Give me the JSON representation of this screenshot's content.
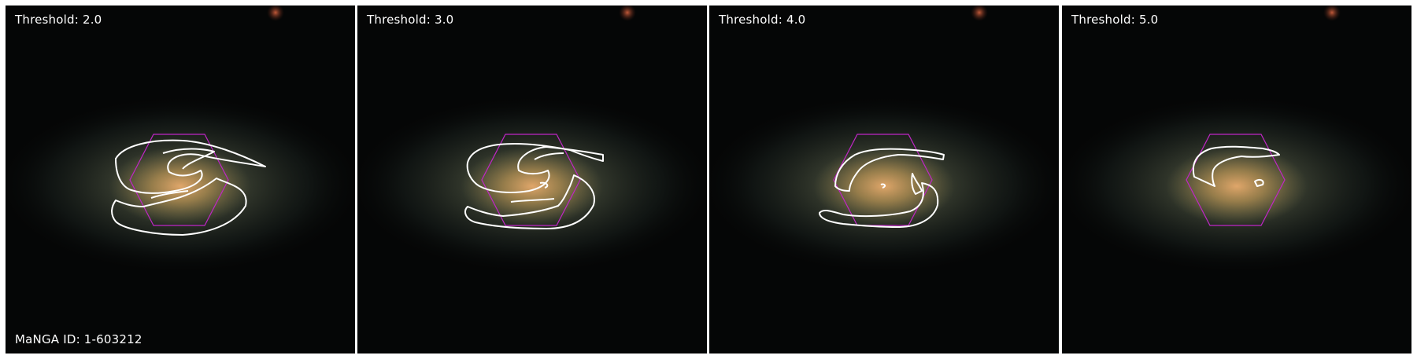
{
  "panels": [
    {
      "threshold_label": "Threshold: 2.0"
    },
    {
      "threshold_label": "Threshold: 3.0"
    },
    {
      "threshold_label": "Threshold: 4.0"
    },
    {
      "threshold_label": "Threshold: 5.0"
    }
  ],
  "galaxy_id_label": "MaNGA ID: 1-603212",
  "colors": {
    "contour": "#ffffff",
    "ifu_hexagon": "#c026c6",
    "background": "#050606"
  }
}
